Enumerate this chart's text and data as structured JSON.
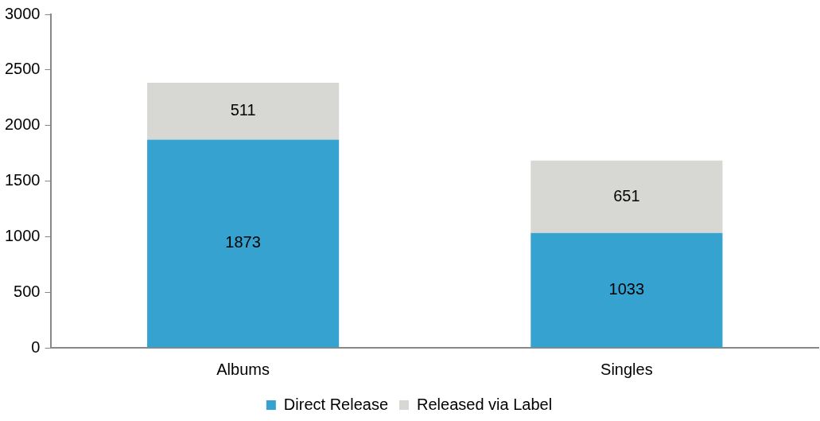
{
  "chart_data": {
    "type": "bar",
    "stacked": true,
    "categories": [
      "Albums",
      "Singles"
    ],
    "series": [
      {
        "name": "Direct Release",
        "color": "#36a2d0",
        "values": [
          1873,
          1033
        ]
      },
      {
        "name": "Released via Label",
        "color": "#d7d7d3",
        "values": [
          511,
          651
        ]
      }
    ],
    "ylim": [
      0,
      3000
    ],
    "yticks": [
      0,
      500,
      1000,
      1500,
      2000,
      2500,
      3000
    ],
    "grid": false,
    "legend": "bottom",
    "data_labels": true
  }
}
